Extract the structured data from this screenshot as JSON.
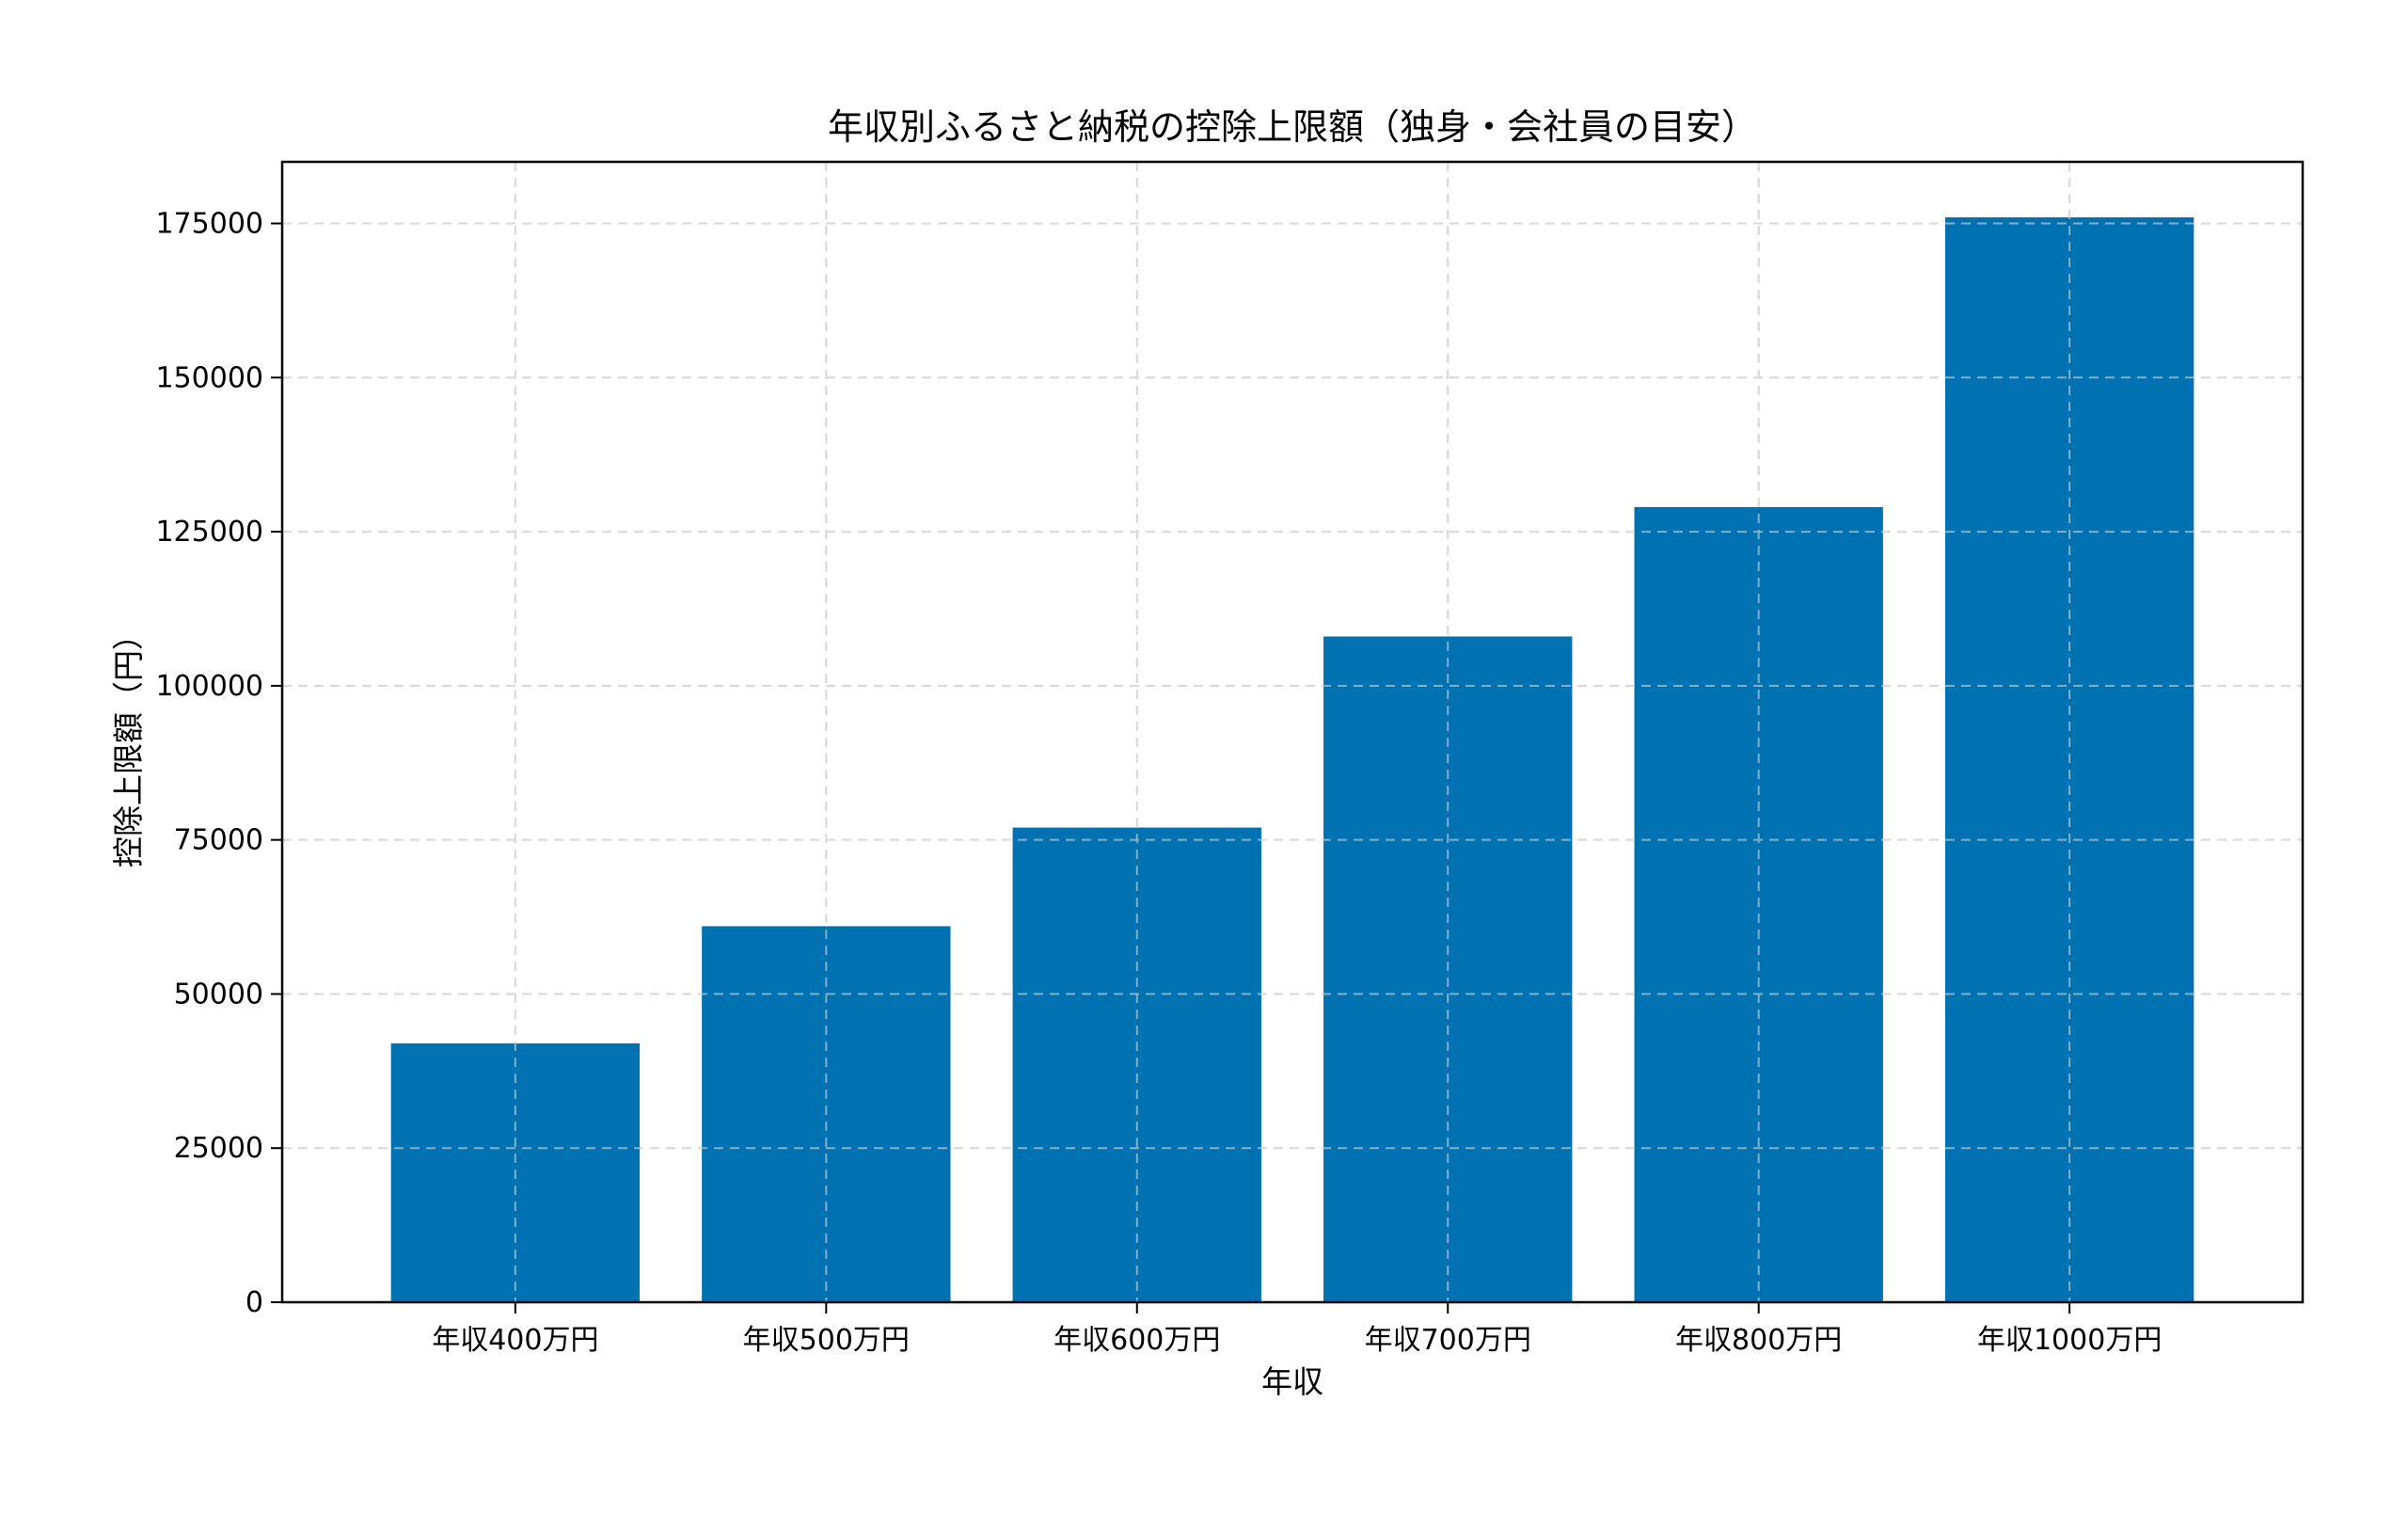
{
  "chart_data": {
    "type": "bar",
    "title": "年収別ふるさと納税の控除上限額（独身・会社員の目安）",
    "xlabel": "年収",
    "ylabel": "控除上限額（円）",
    "categories": [
      "年収400万円",
      "年収500万円",
      "年収600万円",
      "年収700万円",
      "年収800万円",
      "年収1000万円"
    ],
    "values": [
      42000,
      61000,
      77000,
      108000,
      129000,
      176000
    ],
    "ylim": [
      0,
      185000
    ],
    "yticks": [
      0,
      25000,
      50000,
      75000,
      100000,
      125000,
      150000,
      175000
    ],
    "ytick_labels": [
      "0",
      "25000",
      "50000",
      "75000",
      "100000",
      "125000",
      "150000",
      "175000"
    ],
    "grid": true,
    "bar_color": "#0072B2",
    "grid_color": "#d9d9d9"
  }
}
